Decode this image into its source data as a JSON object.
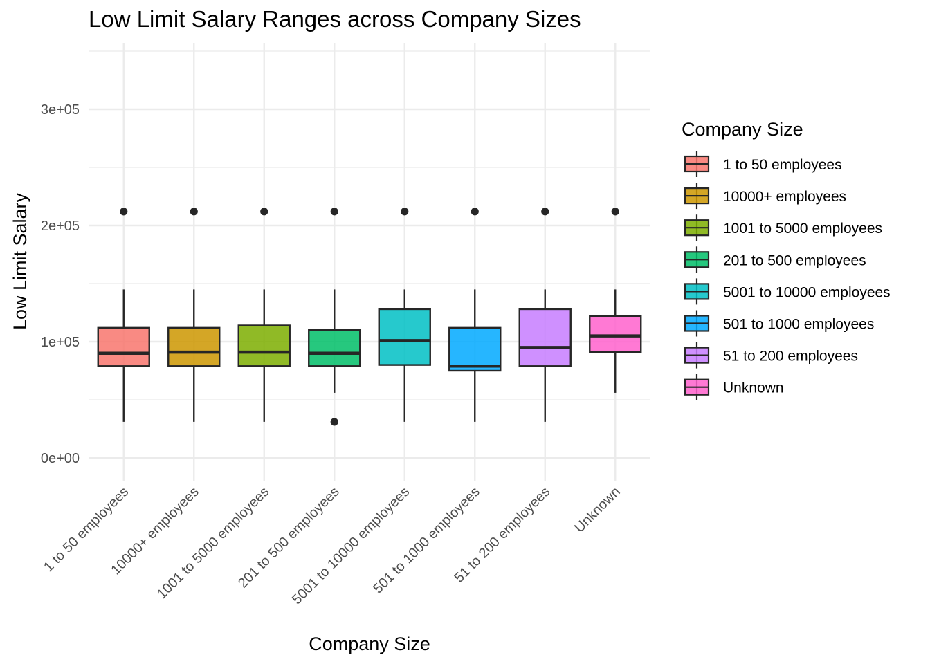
{
  "chart_data": {
    "type": "box",
    "title": "Low Limit Salary Ranges across Company Sizes",
    "xlabel": "Company Size",
    "ylabel": "Low Limit Salary",
    "ylim": [
      -20000,
      355000
    ],
    "y_ticks": [
      0,
      100000,
      200000,
      300000
    ],
    "y_tick_labels": [
      "0e+00",
      "1e+05",
      "2e+05",
      "3e+05"
    ],
    "grid": true,
    "legend": {
      "title": "Company Size",
      "position": "right"
    },
    "categories": [
      "1 to 50 employees",
      "10000+ employees",
      "1001 to 5000 employees",
      "201 to 500 employees",
      "5001 to 10000 employees",
      "501 to 1000 employees",
      "51 to 200 employees",
      "Unknown"
    ],
    "colors": [
      "#F8766D",
      "#CD9600",
      "#7CAE00",
      "#00BE67",
      "#00BFC4",
      "#00A9FF",
      "#C77CFF",
      "#FF61CC"
    ],
    "series": [
      {
        "name": "1 to 50 employees",
        "whisker_low": 31000,
        "q1": 79000,
        "median": 90000,
        "q3": 112000,
        "whisker_high": 145000,
        "outliers": [
          212000
        ]
      },
      {
        "name": "10000+ employees",
        "whisker_low": 31000,
        "q1": 79000,
        "median": 91000,
        "q3": 112000,
        "whisker_high": 145000,
        "outliers": [
          212000
        ]
      },
      {
        "name": "1001 to 5000 employees",
        "whisker_low": 31000,
        "q1": 79000,
        "median": 91000,
        "q3": 114000,
        "whisker_high": 145000,
        "outliers": [
          212000
        ]
      },
      {
        "name": "201 to 500 employees",
        "whisker_low": 56000,
        "q1": 79000,
        "median": 90000,
        "q3": 110000,
        "whisker_high": 145000,
        "outliers": [
          212000,
          31000
        ]
      },
      {
        "name": "5001 to 10000 employees",
        "whisker_low": 31000,
        "q1": 80000,
        "median": 101000,
        "q3": 128000,
        "whisker_high": 145000,
        "outliers": [
          212000
        ]
      },
      {
        "name": "501 to 1000 employees",
        "whisker_low": 31000,
        "q1": 75000,
        "median": 79000,
        "q3": 112000,
        "whisker_high": 145000,
        "outliers": [
          212000
        ]
      },
      {
        "name": "51 to 200 employees",
        "whisker_low": 31000,
        "q1": 79000,
        "median": 95000,
        "q3": 128000,
        "whisker_high": 145000,
        "outliers": [
          212000
        ]
      },
      {
        "name": "Unknown",
        "whisker_low": 56000,
        "q1": 91000,
        "median": 105000,
        "q3": 122000,
        "whisker_high": 145000,
        "outliers": [
          212000
        ]
      }
    ]
  }
}
